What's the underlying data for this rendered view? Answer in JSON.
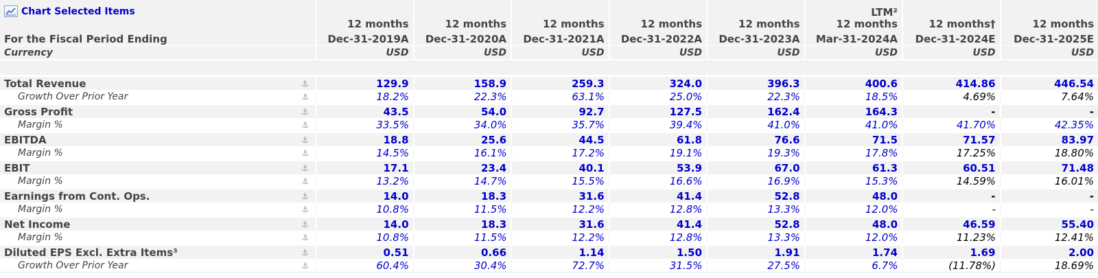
{
  "toolbar": {
    "chart_selected_label": "Chart Selected Items",
    "chart_icon": "chart-line-icon"
  },
  "header": {
    "period_label": "For the Fiscal Period Ending",
    "currency_label": "Currency",
    "columns": [
      {
        "top": "",
        "months": "12 months",
        "date": "Dec-31-2019A",
        "currency": "USD"
      },
      {
        "top": "",
        "months": "12 months",
        "date": "Dec-31-2020A",
        "currency": "USD"
      },
      {
        "top": "",
        "months": "12 months",
        "date": "Dec-31-2021A",
        "currency": "USD"
      },
      {
        "top": "",
        "months": "12 months",
        "date": "Dec-31-2022A",
        "currency": "USD"
      },
      {
        "top": "",
        "months": "12 months",
        "date": "Dec-31-2023A",
        "currency": "USD"
      },
      {
        "top": "LTM²",
        "months": "12 months",
        "date": "Mar-31-2024A",
        "currency": "USD"
      },
      {
        "top": "",
        "months": "12 months†",
        "date": "Dec-31-2024E",
        "currency": "USD"
      },
      {
        "top": "",
        "months": "12 months",
        "date": "Dec-31-2025E",
        "currency": "USD"
      }
    ]
  },
  "row_icon": "anchor-icon",
  "rows": [
    {
      "label": "Total Revenue",
      "type": "main",
      "values": [
        "129.9",
        "158.9",
        "259.3",
        "324.0",
        "396.3",
        "400.6",
        "414.86",
        "446.54"
      ],
      "styles": [
        "a",
        "a",
        "a",
        "a",
        "a",
        "a",
        "eb",
        "eb"
      ]
    },
    {
      "label": "Growth Over Prior Year",
      "type": "sub",
      "values": [
        "18.2%",
        "22.3%",
        "63.1%",
        "25.0%",
        "22.3%",
        "18.5%",
        "4.69%",
        "7.64%"
      ],
      "styles": [
        "a",
        "a",
        "a",
        "a",
        "a",
        "a",
        "e",
        "e"
      ]
    },
    {
      "label": "Gross Profit",
      "type": "main",
      "values": [
        "43.5",
        "54.0",
        "92.7",
        "127.5",
        "162.4",
        "164.3",
        "-",
        "-"
      ],
      "styles": [
        "a",
        "a",
        "a",
        "a",
        "a",
        "a",
        "e",
        "e"
      ]
    },
    {
      "label": "Margin %",
      "type": "sub",
      "values": [
        "33.5%",
        "34.0%",
        "35.7%",
        "39.4%",
        "41.0%",
        "41.0%",
        "41.70%",
        "42.35%"
      ],
      "styles": [
        "a",
        "a",
        "a",
        "a",
        "a",
        "a",
        "a",
        "a"
      ]
    },
    {
      "label": "EBITDA",
      "type": "main",
      "values": [
        "18.8",
        "25.6",
        "44.5",
        "61.8",
        "76.6",
        "71.5",
        "71.57",
        "83.97"
      ],
      "styles": [
        "a",
        "a",
        "a",
        "a",
        "a",
        "a",
        "eb",
        "eb"
      ]
    },
    {
      "label": "Margin %",
      "type": "sub",
      "values": [
        "14.5%",
        "16.1%",
        "17.2%",
        "19.1%",
        "19.3%",
        "17.8%",
        "17.25%",
        "18.80%"
      ],
      "styles": [
        "a",
        "a",
        "a",
        "a",
        "a",
        "a",
        "e",
        "e"
      ]
    },
    {
      "label": "EBIT",
      "type": "main",
      "values": [
        "17.1",
        "23.4",
        "40.1",
        "53.9",
        "67.0",
        "61.3",
        "60.51",
        "71.48"
      ],
      "styles": [
        "a",
        "a",
        "a",
        "a",
        "a",
        "a",
        "eb",
        "eb"
      ]
    },
    {
      "label": "Margin %",
      "type": "sub",
      "values": [
        "13.2%",
        "14.7%",
        "15.5%",
        "16.6%",
        "16.9%",
        "15.3%",
        "14.59%",
        "16.01%"
      ],
      "styles": [
        "a",
        "a",
        "a",
        "a",
        "a",
        "a",
        "e",
        "e"
      ]
    },
    {
      "label": "Earnings from Cont. Ops.",
      "type": "main",
      "values": [
        "14.0",
        "18.3",
        "31.6",
        "41.4",
        "52.8",
        "48.0",
        "-",
        "-"
      ],
      "styles": [
        "a",
        "a",
        "a",
        "a",
        "a",
        "a",
        "e",
        "e"
      ]
    },
    {
      "label": "Margin %",
      "type": "sub",
      "values": [
        "10.8%",
        "11.5%",
        "12.2%",
        "12.8%",
        "13.3%",
        "12.0%",
        "-",
        "-"
      ],
      "styles": [
        "a",
        "a",
        "a",
        "a",
        "a",
        "a",
        "e",
        "e"
      ]
    },
    {
      "label": "Net Income",
      "type": "main",
      "values": [
        "14.0",
        "18.3",
        "31.6",
        "41.4",
        "52.8",
        "48.0",
        "46.59",
        "55.40"
      ],
      "styles": [
        "a",
        "a",
        "a",
        "a",
        "a",
        "a",
        "eb",
        "eb"
      ]
    },
    {
      "label": "Margin %",
      "type": "sub",
      "values": [
        "10.8%",
        "11.5%",
        "12.2%",
        "12.8%",
        "13.3%",
        "12.0%",
        "11.23%",
        "12.41%"
      ],
      "styles": [
        "a",
        "a",
        "a",
        "a",
        "a",
        "a",
        "e",
        "e"
      ]
    },
    {
      "label": "Diluted EPS Excl. Extra Items³",
      "type": "main",
      "values": [
        "0.51",
        "0.66",
        "1.14",
        "1.50",
        "1.91",
        "1.74",
        "1.69",
        "2.00"
      ],
      "styles": [
        "a",
        "a",
        "a",
        "a",
        "a",
        "a",
        "eb",
        "eb"
      ]
    },
    {
      "label": "Growth Over Prior Year",
      "type": "sub",
      "values": [
        "60.4%",
        "30.4%",
        "72.7%",
        "31.5%",
        "27.5%",
        "6.7%",
        "(11.78%)",
        "18.69%"
      ],
      "styles": [
        "a",
        "a",
        "a",
        "a",
        "a",
        "a",
        "e",
        "e"
      ]
    }
  ],
  "colors": {
    "actual": "#0000cc",
    "estimate": "#000000",
    "header_bg": "#f2f2f2"
  }
}
